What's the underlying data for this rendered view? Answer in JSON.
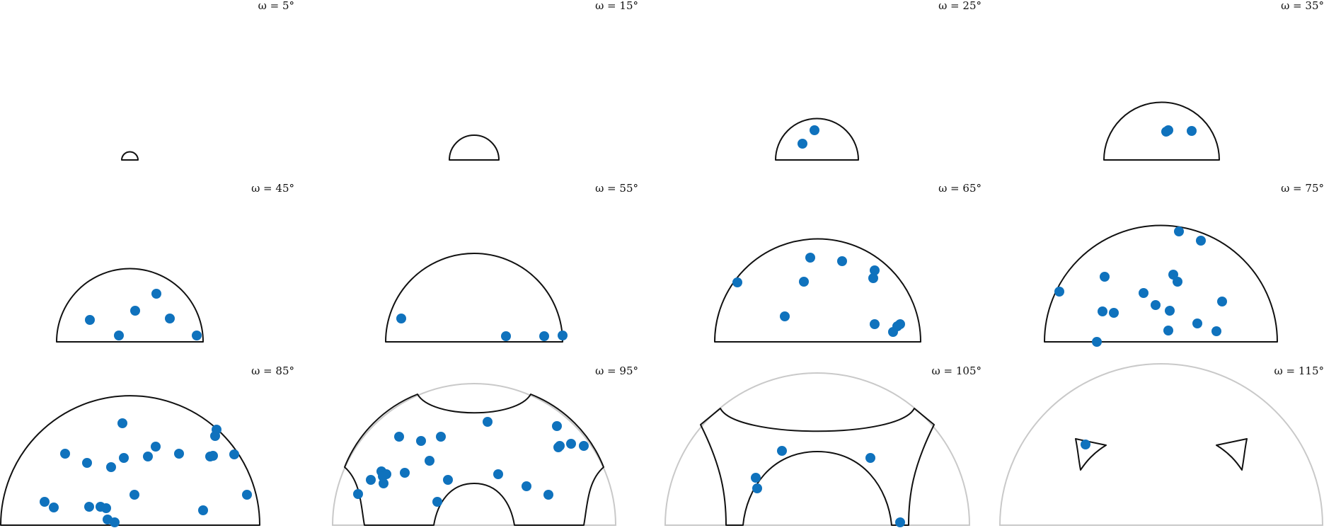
{
  "figure": {
    "point_color": "#0f72bd",
    "outline_color": "#111111",
    "ghost_outline_color": "#c9c9c9",
    "panels": [
      {
        "title": "ω = 5°",
        "omega": 5
      },
      {
        "title": "ω = 15°",
        "omega": 15
      },
      {
        "title": "ω = 25°",
        "omega": 25
      },
      {
        "title": "ω = 35°",
        "omega": 35
      },
      {
        "title": "ω = 45°",
        "omega": 45
      },
      {
        "title": "ω = 55°",
        "omega": 55
      },
      {
        "title": "ω = 65°",
        "omega": 65
      },
      {
        "title": "ω = 75°",
        "omega": 75
      },
      {
        "title": "ω = 85°",
        "omega": 85
      },
      {
        "title": "ω = 95°",
        "omega": 95
      },
      {
        "title": "ω = 105°",
        "omega": 105
      },
      {
        "title": "ω = 115°",
        "omega": 115
      }
    ]
  }
}
